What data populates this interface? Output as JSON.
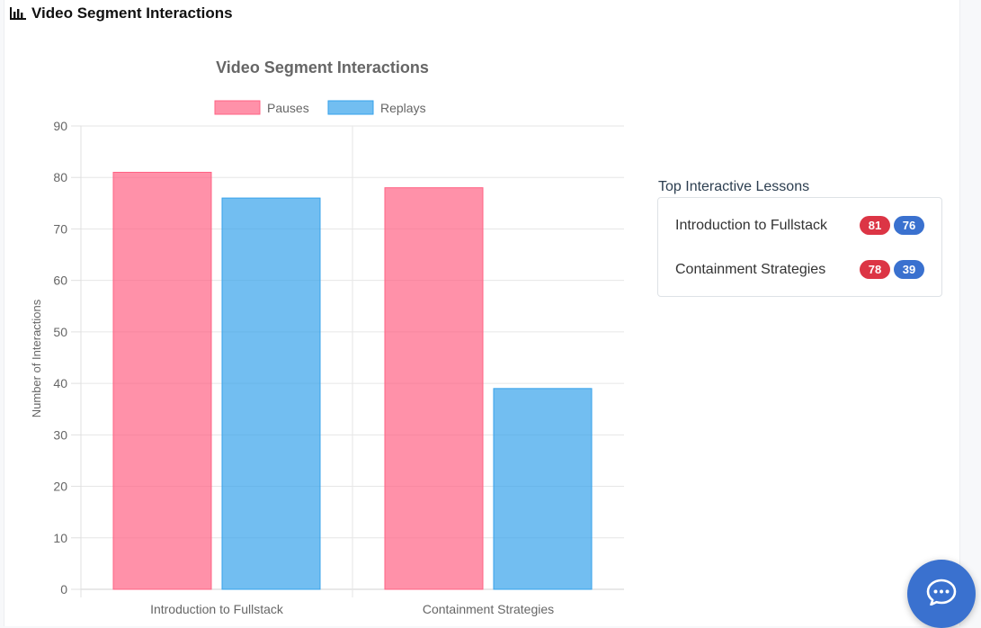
{
  "header": {
    "title": "Video Segment Interactions",
    "icon": "bar-chart-icon"
  },
  "chart_data": {
    "type": "bar",
    "title": "Video Segment Interactions",
    "categories": [
      "Introduction to Fullstack",
      "Containment Strategies"
    ],
    "series": [
      {
        "name": "Pauses",
        "values": [
          81,
          78
        ],
        "color": "#ff6384"
      },
      {
        "name": "Replays",
        "values": [
          76,
          39
        ],
        "color": "#36a2eb"
      }
    ],
    "xlabel": "",
    "ylabel": "Number of Interactions",
    "ylim": [
      0,
      90
    ],
    "yticks": [
      0,
      10,
      20,
      30,
      40,
      50,
      60,
      70,
      80,
      90
    ],
    "grid": true,
    "legend_position": "top"
  },
  "lessons": {
    "title": "Top Interactive Lessons",
    "items": [
      {
        "name": "Introduction to Fullstack",
        "pauses": "81",
        "replays": "76"
      },
      {
        "name": "Containment Strategies",
        "pauses": "78",
        "replays": "39"
      }
    ],
    "colors": {
      "pauses": "#dc3545",
      "replays": "#3a71cf"
    }
  },
  "chat": {
    "icon": "chat-bubble-icon",
    "color": "#3a71cf"
  }
}
